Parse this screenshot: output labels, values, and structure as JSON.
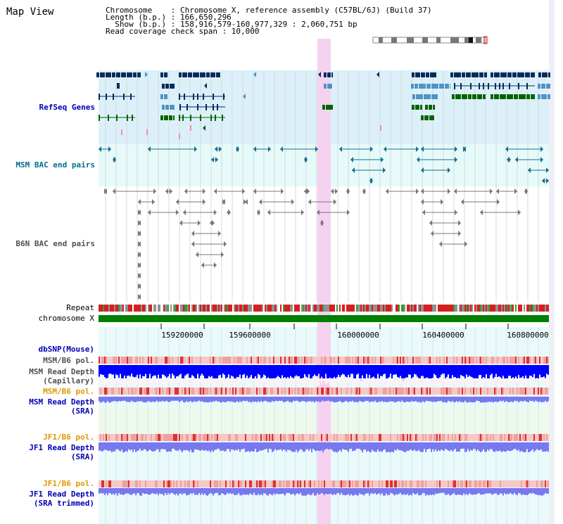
{
  "window": {
    "title": "Map View"
  },
  "header": {
    "line1": "Chromosome    : Chromosome X, reference assembly (C57BL/6J) (Build 37)",
    "line2": "Length (b.p.) : 166,650,296",
    "line3": "  Show (b.p.) : 158,916,579-160,977,329 : 2,060,751 bp",
    "line4": "Read coverage check span : 10,000"
  },
  "tracks": {
    "refseq": "RefSeq Genes",
    "msm_bac": "MSM BAC end pairs",
    "b6n_bac": "B6N BAC end pairs",
    "repeat": "Repeat",
    "chromosome": "chromosome X",
    "dbsnp": "dbSNP(Mouse)",
    "msm_b6_pol_1": "MSM/B6 pol.",
    "msm_read_depth_cap_1": "MSM Read Depth",
    "msm_read_depth_cap_2": "(Capillary)",
    "msm_b6_pol_2": "MSM/B6 pol.",
    "msm_read_depth_sra_1": "MSM Read Depth",
    "msm_read_depth_sra_2": "(SRA)",
    "jf1_b6_pol_1": "JF1/B6 pol.",
    "jf1_read_depth_sra_1": "JF1 Read Depth",
    "jf1_read_depth_sra_2": "(SRA)",
    "jf1_b6_pol_2": "JF1/B6 pol.",
    "jf1_read_depth_trim_1": "JF1 Read Depth",
    "jf1_read_depth_trim_2": "(SRA trimmed)"
  },
  "axis": {
    "ticks": [
      "159200000",
      "159600000",
      "160000000",
      "160400000",
      "160800000"
    ]
  },
  "colors": {
    "refseq_bg": "#dcf0fa",
    "msm_bac_bg": "#e6fafa",
    "highlight": "#f5d2f0",
    "dark_gene": "#002b5c",
    "mid_gene": "#4f94c4",
    "green_gene": "#006400",
    "msm_bac": "#1a6e8e",
    "b6n_bac": "#787878",
    "chromosome": "#008000",
    "label_blue": "#0000b4",
    "label_teal": "#006e8c",
    "label_gray": "#505050",
    "label_orange": "#e19600",
    "depth_blue": "#0000ff",
    "depth_sra": "#7878f0"
  }
}
